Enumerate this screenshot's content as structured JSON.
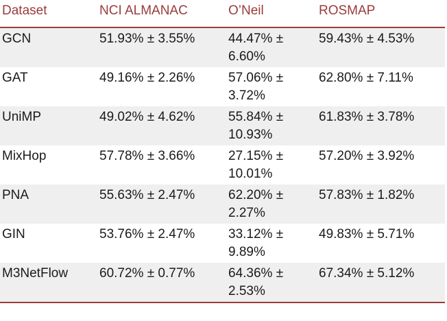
{
  "table": {
    "headers": [
      "Dataset",
      "NCI ALMANAC",
      "O’Neil",
      "ROSMAP"
    ],
    "rows": [
      [
        "GCN",
        "51.93% ± 3.55%",
        "44.47% ± 6.60%",
        "59.43% ± 4.53%"
      ],
      [
        "GAT",
        "49.16% ± 2.26%",
        "57.06% ± 3.72%",
        "62.80% ± 7.11%"
      ],
      [
        "UniMP",
        "49.02% ± 4.62%",
        "55.84% ± 10.93%",
        "61.83% ± 3.78%"
      ],
      [
        "MixHop",
        "57.78% ± 3.66%",
        "27.15% ± 10.01%",
        "57.20% ± 3.92%"
      ],
      [
        "PNA",
        "55.63% ± 2.47%",
        "62.20% ± 2.27%",
        "57.83% ± 1.82%"
      ],
      [
        "GIN",
        "53.76% ± 2.47%",
        "33.12% ± 9.89%",
        "49.83% ± 5.71%"
      ],
      [
        "M3NetFlow",
        "60.72% ± 0.77%",
        "64.36% ± 2.53%",
        "67.34% ± 5.12%"
      ]
    ]
  },
  "colors": {
    "accent": "#9a3b3b",
    "stripe": "#efefef"
  }
}
